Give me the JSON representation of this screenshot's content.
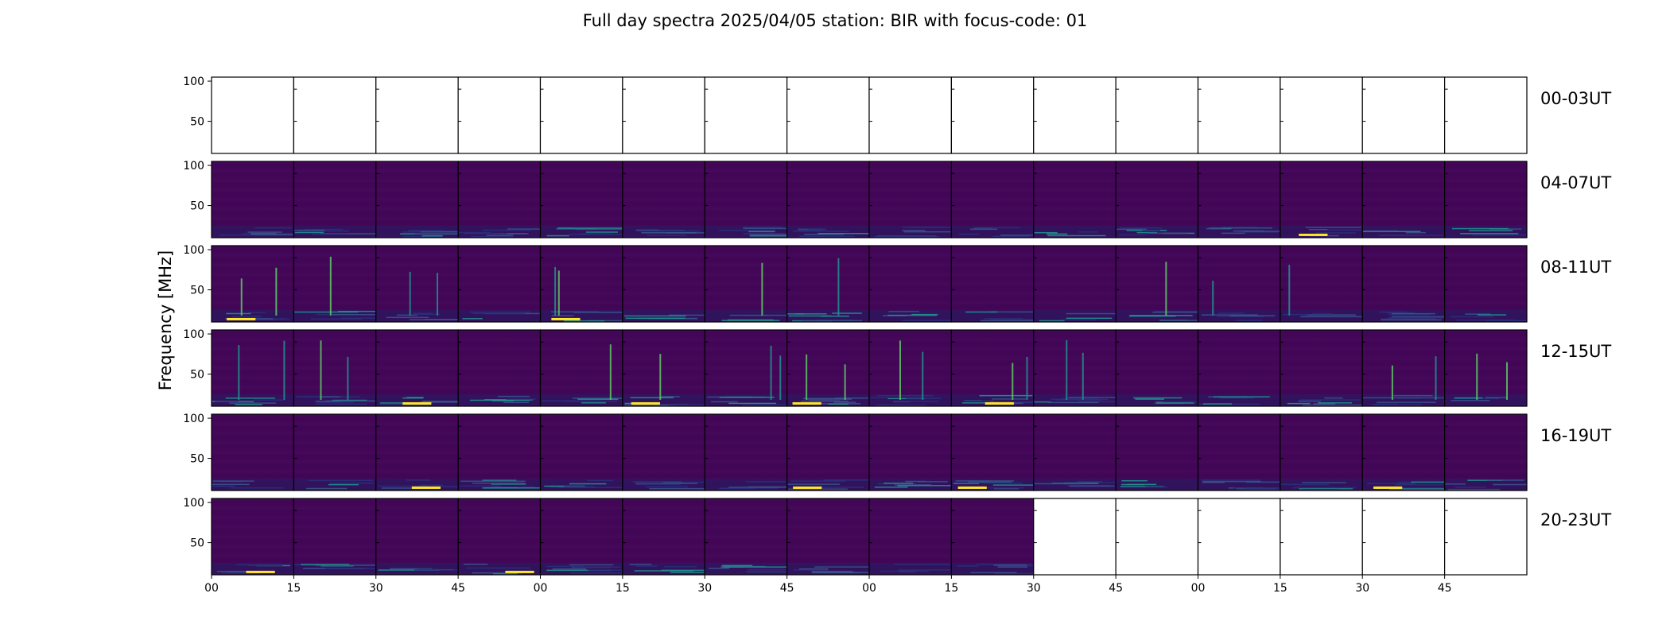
{
  "chart_data": {
    "type": "heatmap",
    "title": "Full day spectra 2025/04/05 station: BIR with focus-code: 01",
    "ylabel": "Frequency [MHz]",
    "xlabel": "",
    "yticks": [
      50,
      100
    ],
    "ylim": [
      10,
      105
    ],
    "xticks": [
      "00",
      "15",
      "30",
      "45",
      "00",
      "15",
      "30",
      "45",
      "00",
      "15",
      "30",
      "45",
      "00",
      "15",
      "30",
      "45"
    ],
    "panels_per_row": 16,
    "rows": [
      {
        "label": "00-03UT",
        "panels_with_data": 0
      },
      {
        "label": "04-07UT",
        "panels_with_data": 16
      },
      {
        "label": "08-11UT",
        "panels_with_data": 16
      },
      {
        "label": "12-15UT",
        "panels_with_data": 16
      },
      {
        "label": "16-19UT",
        "panels_with_data": 16
      },
      {
        "label": "20-23UT",
        "panels_with_data": 10
      }
    ],
    "colormap": [
      "#440154",
      "#3b528b",
      "#21908d",
      "#5dc963",
      "#fde725"
    ],
    "grid": false
  }
}
